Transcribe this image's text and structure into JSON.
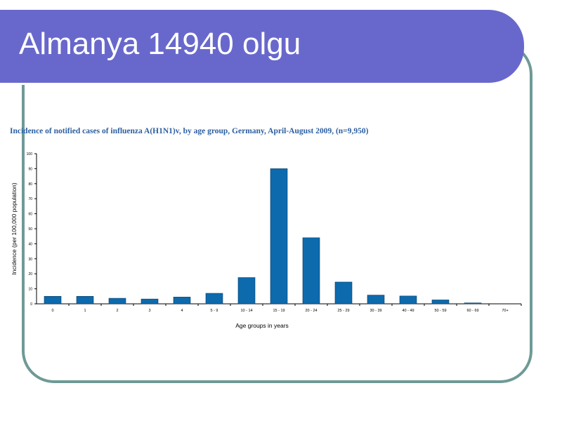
{
  "slide": {
    "title": "Almanya 14940 olgu"
  },
  "colors": {
    "banner": "#6868cc",
    "frame": "#6e9a97",
    "bar": "#0d6aad",
    "chart_title": "#2c5fa0"
  },
  "chart_data": {
    "type": "bar",
    "title": "Incidence of notified cases of influenza A(H1N1)v, by age group, Germany, April-August 2009, (n=9,950)",
    "xlabel": "Age groups in years",
    "ylabel": "Incidence (per 100,000 population)",
    "ylim": [
      0,
      100
    ],
    "yticks": [
      "0",
      "10",
      "20",
      "30",
      "40",
      "50",
      "60",
      "70",
      "80",
      "90",
      "100"
    ],
    "categories": [
      "0",
      "1",
      "2",
      "3",
      "4",
      "5 - 9",
      "10 - 14",
      "15 - 19",
      "20 - 24",
      "25 - 29",
      "30 - 39",
      "40 - 49",
      "50 - 59",
      "60 - 69",
      "70+"
    ],
    "values": [
      5,
      5,
      3.7,
      3.2,
      4.5,
      7,
      17.5,
      90,
      44,
      14.5,
      5.8,
      5.2,
      2.6,
      0.6,
      0
    ],
    "grid": false
  }
}
